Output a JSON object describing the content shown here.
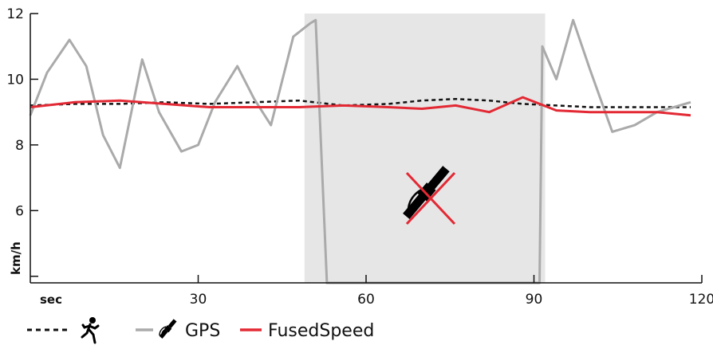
{
  "chart_data": {
    "type": "line",
    "title": "",
    "xlabel": "sec",
    "ylabel": "km/h",
    "xlim": [
      0,
      120
    ],
    "ylim": [
      3.8,
      12
    ],
    "x_ticks": [
      {
        "value": 30,
        "label": "30"
      },
      {
        "value": 60,
        "label": "60"
      },
      {
        "value": 90,
        "label": "90"
      },
      {
        "value": 120,
        "label": "120"
      }
    ],
    "y_ticks": [
      {
        "value": 4,
        "label": ""
      },
      {
        "value": 6,
        "label": "6"
      },
      {
        "value": 8,
        "label": "8"
      },
      {
        "value": 10,
        "label": "10"
      },
      {
        "value": 12,
        "label": "12"
      }
    ],
    "gps_outage": {
      "from": 49,
      "to": 92
    },
    "series": [
      {
        "id": "pod",
        "name": "",
        "legend_icon": "running-person-icon",
        "color": "#111111",
        "style": "dashed",
        "x": [
          0,
          8,
          16,
          24,
          32,
          40,
          48,
          56,
          64,
          70,
          76,
          82,
          88,
          94,
          100,
          106,
          112,
          118
        ],
        "y": [
          9.2,
          9.25,
          9.25,
          9.3,
          9.25,
          9.3,
          9.35,
          9.2,
          9.25,
          9.35,
          9.4,
          9.35,
          9.25,
          9.2,
          9.15,
          9.15,
          9.15,
          9.15
        ]
      },
      {
        "id": "gps",
        "name": "GPS",
        "legend_icon": "gps-satellite-icon",
        "color": "#aaaaaa",
        "style": "solid",
        "x": [
          0,
          3,
          7,
          10,
          13,
          16,
          20,
          23,
          27,
          30,
          33,
          37,
          40,
          43,
          47,
          50,
          51,
          53,
          54,
          55,
          59,
          61,
          67,
          73,
          80,
          86,
          90,
          91,
          91.5,
          93,
          94,
          97,
          100,
          104,
          108,
          112,
          118
        ],
        "y": [
          8.9,
          10.2,
          11.2,
          10.4,
          8.3,
          7.3,
          10.6,
          9.0,
          7.8,
          8.0,
          9.3,
          10.4,
          9.4,
          8.6,
          11.3,
          11.7,
          11.8,
          3.8,
          3.8,
          3.8,
          3.8,
          3.8,
          3.8,
          3.8,
          3.8,
          3.8,
          3.8,
          3.8,
          11.0,
          10.4,
          10.0,
          11.8,
          10.3,
          8.4,
          8.6,
          9.0,
          9.3
        ]
      },
      {
        "id": "fused",
        "name": "FusedSpeed",
        "color": "#e32934",
        "style": "solid",
        "x": [
          0,
          8,
          16,
          24,
          32,
          40,
          48,
          56,
          64,
          70,
          76,
          82,
          88,
          94,
          100,
          106,
          112,
          118
        ],
        "y": [
          9.15,
          9.3,
          9.35,
          9.25,
          9.15,
          9.15,
          9.15,
          9.2,
          9.15,
          9.1,
          9.2,
          9.0,
          9.45,
          9.05,
          9.0,
          9.0,
          9.0,
          8.9
        ]
      }
    ],
    "legend": {
      "placement": "bottom-left"
    },
    "grid": false,
    "annotations": [
      {
        "type": "icon",
        "name": "gps-no-signal-icon",
        "note": "satellite crossed out"
      }
    ]
  }
}
